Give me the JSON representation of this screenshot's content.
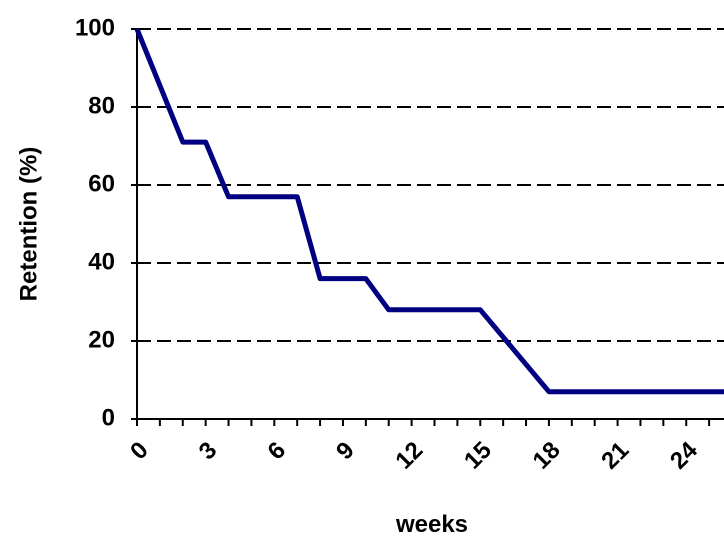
{
  "chart_data": {
    "type": "line",
    "x_label": "weeks",
    "y_label": "Retention (%)",
    "x": [
      0,
      2,
      3,
      4,
      7,
      8,
      10,
      11,
      15,
      18,
      26
    ],
    "series": [
      {
        "color": "#000080",
        "values": [
          100,
          71,
          71,
          57,
          57,
          36,
          36,
          28,
          28,
          7,
          7
        ]
      }
    ],
    "xlim": [
      0,
      26
    ],
    "xticks": [
      0,
      3,
      6,
      9,
      12,
      15,
      18,
      21,
      24
    ],
    "ylim": [
      0,
      100
    ],
    "yticks": [
      0,
      20,
      40,
      60,
      80,
      100
    ],
    "grid": true
  }
}
